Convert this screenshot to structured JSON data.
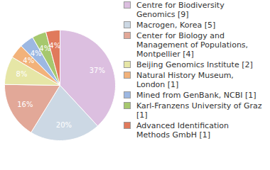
{
  "chart_data": {
    "type": "pie",
    "categories": [
      "Centre for Biodiversity Genomics [9]",
      "Macrogen, Korea [5]",
      "Center for Biology and Management of Populations, Montpellier [4]",
      "Beijing Genomics Institute [2]",
      "Natural History Museum, London [1]",
      "Mined from GenBank, NCBI [1]",
      "Karl-Franzens University of Graz [1]",
      "Advanced Identification Methods GmbH [1]"
    ],
    "values": [
      37,
      20,
      16,
      8,
      4,
      4,
      4,
      4
    ],
    "value_labels": [
      "37%",
      "20%",
      "16%",
      "8%",
      "4%",
      "4%",
      "4%",
      "4%"
    ],
    "colors": [
      "#dcbfe0",
      "#ccd8e4",
      "#e2a898",
      "#e6e6a6",
      "#f2b27a",
      "#9db8e2",
      "#a6c86e",
      "#e07a5c"
    ],
    "data_labels": true,
    "legend": "right"
  }
}
